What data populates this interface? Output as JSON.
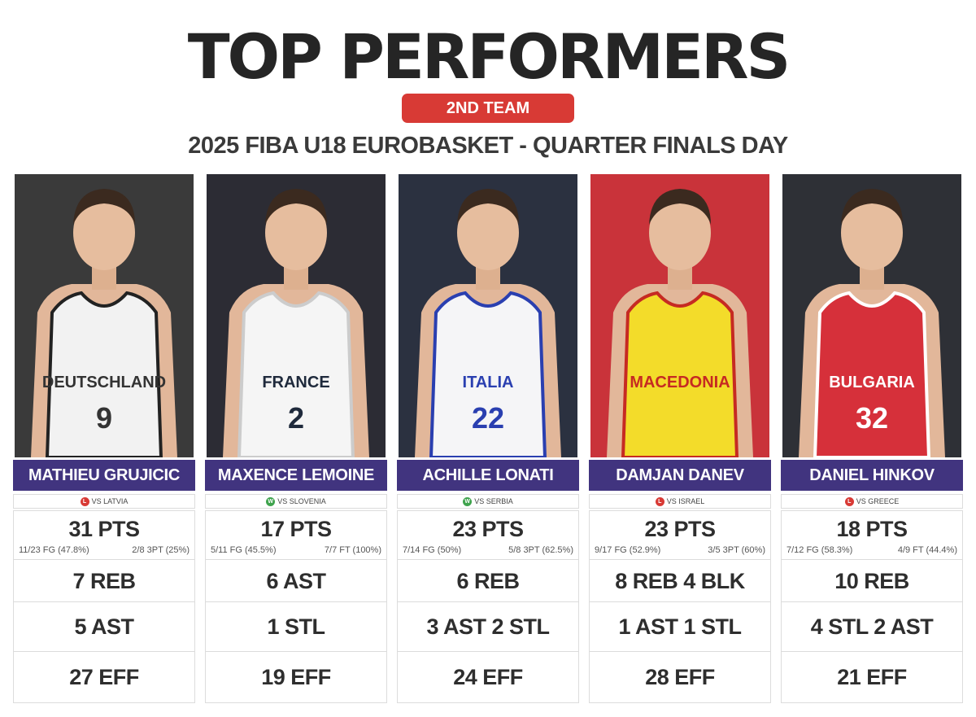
{
  "header": {
    "title": "TOP PERFORMERS",
    "badge": "2ND TEAM",
    "subtitle": "2025 FIBA U18 EUROBASKET - QUARTER FINALS DAY"
  },
  "players": [
    {
      "name": "MATHIEU GRUJICIC",
      "result": "L",
      "opponent": "VS LATVIA",
      "points": "31 PTS",
      "shoot_left": "11/23 FG (47.8%)",
      "shoot_right": "2/8 3PT (25%)",
      "stat2": "7 REB",
      "stat3": "5 AST",
      "stat4": "27 EFF",
      "jersey_text": "DEUTSCHLAND",
      "jersey_number": "9",
      "jersey_color": "#f2f2f2",
      "jersey_text_color": "#333333",
      "trim_color": "#222222",
      "bg_color": "#3a3a3a"
    },
    {
      "name": "MAXENCE LEMOINE",
      "result": "W",
      "opponent": "VS SLOVENIA",
      "points": "17 PTS",
      "shoot_left": "5/11 FG (45.5%)",
      "shoot_right": "7/7 FT (100%)",
      "stat2": "6 AST",
      "stat3": "1 STL",
      "stat4": "19 EFF",
      "jersey_text": "FRANCE",
      "jersey_number": "2",
      "jersey_color": "#f5f5f5",
      "jersey_text_color": "#1f2a3c",
      "trim_color": "#cccccc",
      "bg_color": "#2c2c34"
    },
    {
      "name": "ACHILLE LONATI",
      "result": "W",
      "opponent": "VS SERBIA",
      "points": "23 PTS",
      "shoot_left": "7/14 FG (50%)",
      "shoot_right": "5/8 3PT (62.5%)",
      "stat2": "6 REB",
      "stat3": "3 AST 2 STL",
      "stat4": "24 EFF",
      "jersey_text": "ITALIA",
      "jersey_number": "22",
      "jersey_color": "#f5f5f7",
      "jersey_text_color": "#2a3fb0",
      "trim_color": "#2a3fb0",
      "bg_color": "#2b3140"
    },
    {
      "name": "DAMJAN DANEV",
      "result": "L",
      "opponent": "VS ISRAEL",
      "points": "23 PTS",
      "shoot_left": "9/17 FG (52.9%)",
      "shoot_right": "3/5 3PT (60%)",
      "stat2": "8 REB 4 BLK",
      "stat3": "1 AST 1 STL",
      "stat4": "28 EFF",
      "jersey_text": "MACEDONIA",
      "jersey_number": "",
      "jersey_color": "#f3dc2a",
      "jersey_text_color": "#c62a22",
      "trim_color": "#c62a22",
      "bg_color": "#c9333a"
    },
    {
      "name": "DANIEL HINKOV",
      "result": "L",
      "opponent": "VS GREECE",
      "points": "18 PTS",
      "shoot_left": "7/12 FG (58.3%)",
      "shoot_right": "4/9 FT (44.4%)",
      "stat2": "10 REB",
      "stat3": "4 STL 2 AST",
      "stat4": "21 EFF",
      "jersey_text": "BULGARIA",
      "jersey_number": "32",
      "jersey_color": "#d6303a",
      "jersey_text_color": "#ffffff",
      "trim_color": "#ffffff",
      "bg_color": "#2e3036"
    }
  ]
}
